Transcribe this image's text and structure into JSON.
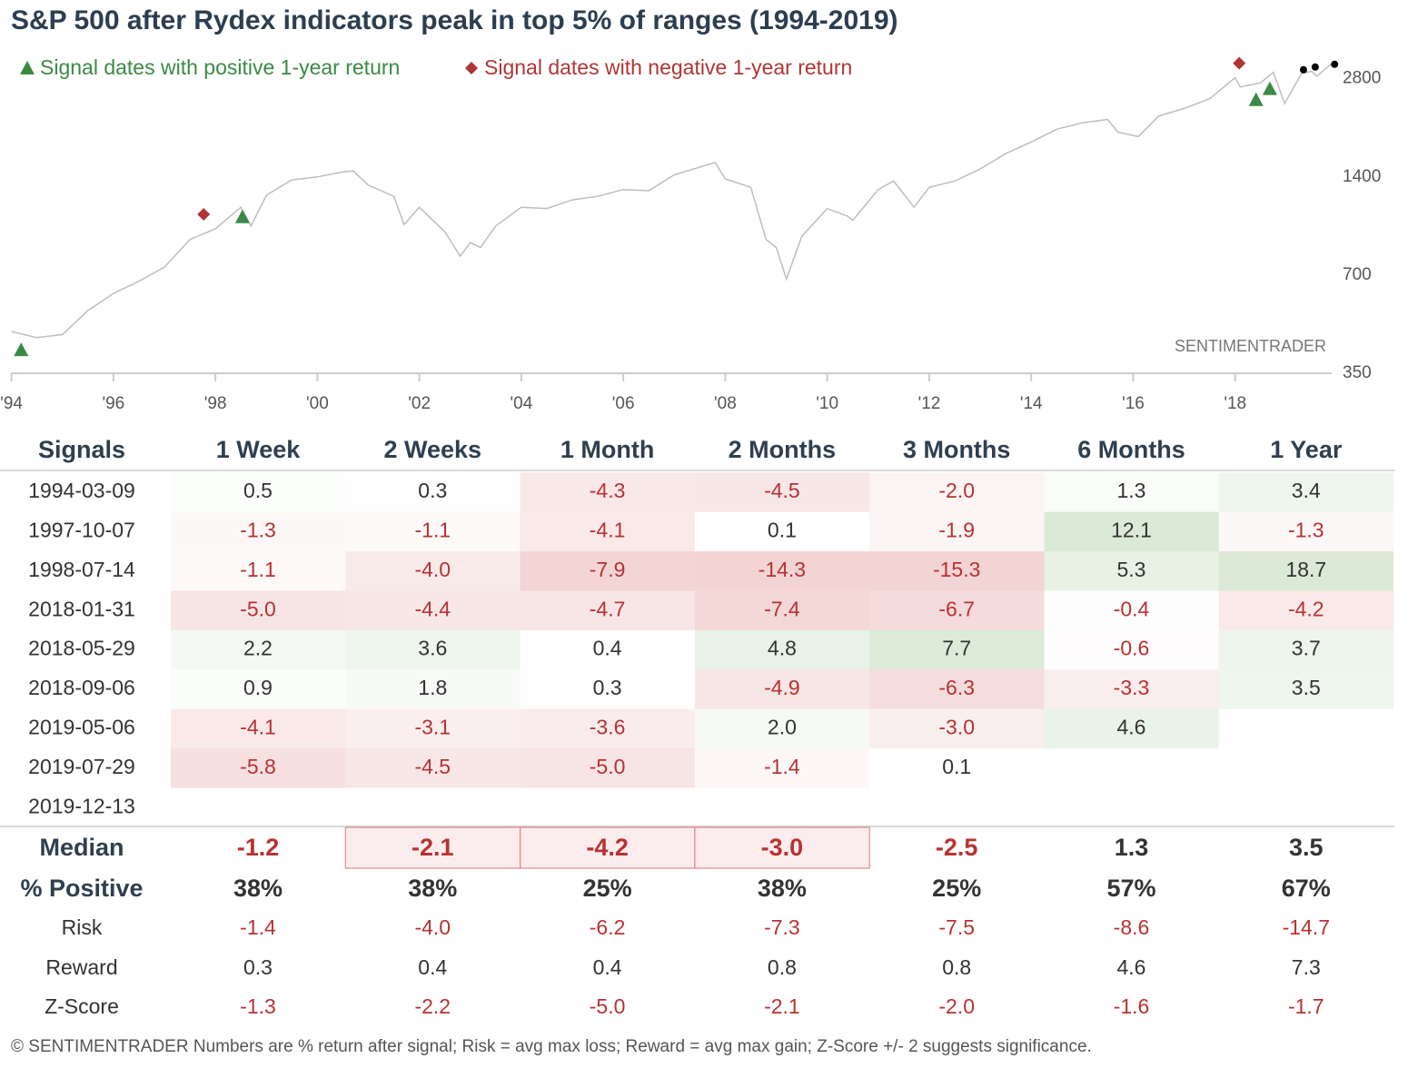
{
  "chart_data": {
    "type": "line",
    "title": "S&P 500 after Rydex indicators peak in top 5% of ranges (1994-2019)",
    "annotation": "SENTIMENTRADER",
    "log_y": true,
    "xlim": [
      1994,
      2020
    ],
    "xticks": [
      {
        "value": 1994,
        "label": "'94"
      },
      {
        "value": 1996,
        "label": "'96"
      },
      {
        "value": 1998,
        "label": "'98"
      },
      {
        "value": 2000,
        "label": "'00"
      },
      {
        "value": 2002,
        "label": "'02"
      },
      {
        "value": 2004,
        "label": "'04"
      },
      {
        "value": 2006,
        "label": "'06"
      },
      {
        "value": 2008,
        "label": "'08"
      },
      {
        "value": 2010,
        "label": "'10"
      },
      {
        "value": 2012,
        "label": "'12"
      },
      {
        "value": 2014,
        "label": "'14"
      },
      {
        "value": 2016,
        "label": "'16"
      },
      {
        "value": 2018,
        "label": "'18"
      }
    ],
    "ylim": [
      350,
      3300
    ],
    "yticks": [
      350,
      700,
      1400,
      2800
    ],
    "series": [
      {
        "marker": "line",
        "color": "#bdbdbd",
        "x": [
          1994.0,
          1994.5,
          1995.0,
          1995.5,
          1996.0,
          1996.5,
          1997.0,
          1997.5,
          1998.0,
          1998.5,
          1998.7,
          1999.0,
          1999.5,
          2000.0,
          2000.5,
          2000.7,
          2001.0,
          2001.5,
          2001.7,
          2002.0,
          2002.5,
          2002.8,
          2003.0,
          2003.2,
          2003.5,
          2004.0,
          2004.5,
          2005.0,
          2005.5,
          2006.0,
          2006.5,
          2007.0,
          2007.5,
          2007.8,
          2008.0,
          2008.5,
          2008.8,
          2009.0,
          2009.2,
          2009.5,
          2010.0,
          2010.4,
          2010.5,
          2011.0,
          2011.3,
          2011.7,
          2012.0,
          2012.5,
          2013.0,
          2013.5,
          2014.0,
          2014.5,
          2015.0,
          2015.5,
          2015.7,
          2016.1,
          2016.5,
          2017.0,
          2017.5,
          2018.0,
          2018.1,
          2018.5,
          2018.75,
          2018.97,
          2019.3,
          2019.5,
          2019.6,
          2019.95
        ],
        "values": [
          470,
          450,
          460,
          545,
          615,
          670,
          740,
          900,
          970,
          1130,
          990,
          1230,
          1370,
          1400,
          1450,
          1460,
          1320,
          1220,
          1000,
          1130,
          950,
          800,
          880,
          850,
          990,
          1130,
          1120,
          1190,
          1220,
          1280,
          1270,
          1420,
          1500,
          1550,
          1380,
          1300,
          900,
          850,
          680,
          920,
          1120,
          1060,
          1030,
          1280,
          1360,
          1130,
          1300,
          1360,
          1480,
          1650,
          1790,
          1960,
          2050,
          2100,
          1920,
          1860,
          2150,
          2270,
          2430,
          2820,
          2640,
          2720,
          2930,
          2350,
          2900,
          2950,
          2850,
          3170
        ]
      },
      {
        "name": "Signal dates with positive 1-year return",
        "marker": "triangle",
        "color": "#3a8a45",
        "x": [
          1994.19,
          1998.53,
          2018.41,
          2018.68
        ],
        "values": [
          413,
          1056,
          2415,
          2609
        ]
      },
      {
        "name": "Signal dates with negative 1-year return",
        "marker": "diamond",
        "color": "#b03535",
        "x": [
          1997.77,
          2018.08
        ],
        "values": [
          1075,
          3122
        ]
      },
      {
        "marker": "circle",
        "color": "#000000",
        "x": [
          2019.34,
          2019.57,
          2019.95
        ],
        "values": [
          2983,
          3040,
          3100
        ]
      }
    ]
  },
  "table": {
    "columns": [
      "Signals",
      "1 Week",
      "2 Weeks",
      "1 Month",
      "2 Months",
      "3 Months",
      "6 Months",
      "1 Year"
    ],
    "rows": [
      [
        "1994-03-09",
        "0.5",
        "0.3",
        "-4.3",
        "-4.5",
        "-2.0",
        "1.3",
        "3.4"
      ],
      [
        "1997-10-07",
        "-1.3",
        "-1.1",
        "-4.1",
        "0.1",
        "-1.9",
        "12.1",
        "-1.3"
      ],
      [
        "1998-07-14",
        "-1.1",
        "-4.0",
        "-7.9",
        "-14.3",
        "-15.3",
        "5.3",
        "18.7"
      ],
      [
        "2018-01-31",
        "-5.0",
        "-4.4",
        "-4.7",
        "-7.4",
        "-6.7",
        "-0.4",
        "-4.2"
      ],
      [
        "2018-05-29",
        "2.2",
        "3.6",
        "0.4",
        "4.8",
        "7.7",
        "-0.6",
        "3.7"
      ],
      [
        "2018-09-06",
        "0.9",
        "1.8",
        "0.3",
        "-4.9",
        "-6.3",
        "-3.3",
        "3.5"
      ],
      [
        "2019-05-06",
        "-4.1",
        "-3.1",
        "-3.6",
        "2.0",
        "-3.0",
        "4.6",
        null
      ],
      [
        "2019-07-29",
        "-5.8",
        "-4.5",
        "-5.0",
        "-1.4",
        "0.1",
        null,
        null
      ],
      [
        "2019-12-13",
        null,
        null,
        null,
        null,
        null,
        null,
        null
      ]
    ],
    "summary": [
      {
        "label": "Median",
        "bold": true,
        "values": [
          "-1.2",
          "-2.1",
          "-4.2",
          "-3.0",
          "-2.5",
          "1.3",
          "3.5"
        ],
        "highlight": [
          false,
          true,
          true,
          true,
          false,
          false,
          false
        ]
      },
      {
        "label": "% Positive",
        "bold": true,
        "values": [
          "38%",
          "38%",
          "25%",
          "38%",
          "25%",
          "57%",
          "67%"
        ]
      },
      {
        "label": "Risk",
        "bold": false,
        "values": [
          "-1.4",
          "-4.0",
          "-6.2",
          "-7.3",
          "-7.5",
          "-8.6",
          "-14.7"
        ]
      },
      {
        "label": "Reward",
        "bold": false,
        "values": [
          "0.3",
          "0.4",
          "0.4",
          "0.8",
          "0.8",
          "4.6",
          "7.3"
        ]
      },
      {
        "label": "Z-Score",
        "bold": false,
        "values": [
          "-1.3",
          "-2.2",
          "-5.0",
          "-2.1",
          "-2.0",
          "-1.6",
          "-1.7"
        ]
      }
    ]
  },
  "footer": "© SENTIMENTRADER  Numbers are % return after signal; Risk = avg max loss; Reward = avg max gain; Z-Score +/- 2 suggests significance."
}
